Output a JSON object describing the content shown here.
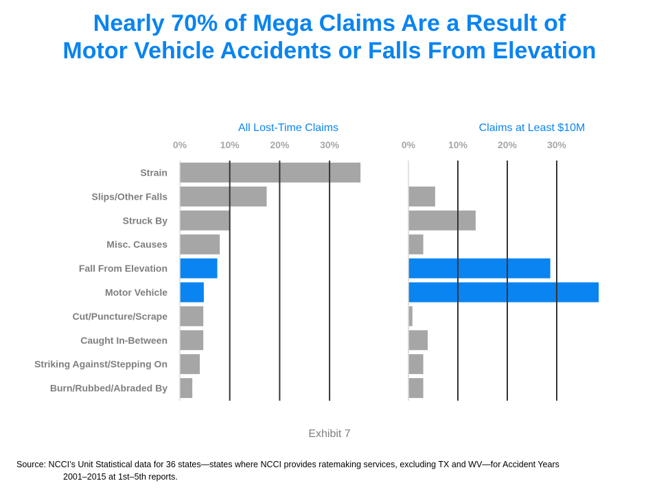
{
  "title": {
    "line1": "Nearly 70% of Mega Claims Are a Result of",
    "line2": "Motor Vehicle Accidents or Falls From Elevation"
  },
  "colors": {
    "title": "#0a84f0",
    "highlight_bar": "#0a84f0",
    "default_bar": "#a6a6a6",
    "gridline": "#333333",
    "tick_label": "#a6a6a6",
    "category_label": "#7f7f7f"
  },
  "chart_data": [
    {
      "type": "bar",
      "orientation": "horizontal",
      "title": "All Lost-Time Claims",
      "xlabel": "",
      "ylabel": "",
      "xlim": [
        0,
        40
      ],
      "xticks": [
        "0%",
        "10%",
        "20%",
        "30%"
      ],
      "xtick_values": [
        0,
        10,
        20,
        30
      ],
      "grid": true,
      "categories": [
        "Strain",
        "Slips/Other Falls",
        "Struck By",
        "Misc. Causes",
        "Fall From Elevation",
        "Motor Vehicle",
        "Cut/Puncture/Scrape",
        "Caught In-Between",
        "Striking Against/Stepping On",
        "Burn/Rubbed/Abraded By"
      ],
      "values": [
        36.2,
        17.4,
        9.9,
        8.0,
        7.5,
        4.8,
        4.7,
        4.7,
        4.0,
        2.5
      ],
      "highlighted": [
        "Fall From Elevation",
        "Motor Vehicle"
      ]
    },
    {
      "type": "bar",
      "orientation": "horizontal",
      "title": "Claims at Least $10M",
      "xlabel": "",
      "ylabel": "",
      "xlim": [
        0,
        40
      ],
      "xticks": [
        "0%",
        "10%",
        "20%",
        "30%"
      ],
      "xtick_values": [
        0,
        10,
        20,
        30
      ],
      "grid": true,
      "categories": [
        "Strain",
        "Slips/Other Falls",
        "Struck By",
        "Misc. Causes",
        "Fall From Elevation",
        "Motor Vehicle",
        "Cut/Puncture/Scrape",
        "Caught In-Between",
        "Striking Against/Stepping On",
        "Burn/Rubbed/Abraded By"
      ],
      "values": [
        0,
        5.4,
        13.6,
        3.0,
        28.7,
        38.5,
        0.8,
        3.9,
        3.0,
        3.0
      ],
      "highlighted": [
        "Fall From Elevation",
        "Motor Vehicle"
      ]
    }
  ],
  "exhibit_label": "Exhibit 7",
  "source": {
    "line1": "Source: NCCI’s Unit Statistical data for 36 states—states where NCCI provides ratemaking services, excluding TX and WV—for Accident Years",
    "line2": "2001–2015 at 1st–5th reports."
  }
}
